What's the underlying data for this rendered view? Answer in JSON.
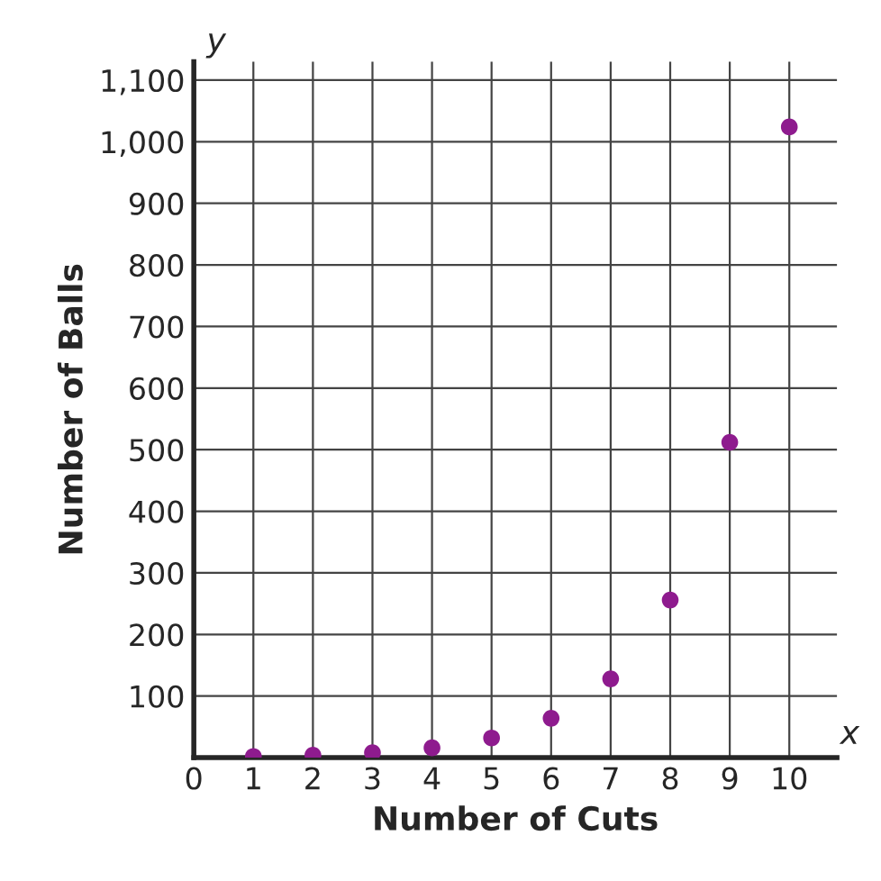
{
  "chart_data": {
    "type": "scatter",
    "xlabel": "Number of Cuts",
    "ylabel": "Number of Balls",
    "x": [
      1,
      2,
      3,
      4,
      5,
      6,
      7,
      8,
      9,
      10
    ],
    "series": [
      {
        "color": "#8e1b8e",
        "values": [
          2,
          4,
          8,
          16,
          32,
          64,
          128,
          256,
          512,
          1024
        ]
      }
    ],
    "xlim": [
      0,
      10.8
    ],
    "ylim": [
      0,
      1130
    ],
    "xticks": [
      0,
      1,
      2,
      3,
      4,
      5,
      6,
      7,
      8,
      9,
      10
    ],
    "yticks": [
      {
        "value": 0,
        "label": null
      },
      100,
      200,
      300,
      400,
      500,
      600,
      700,
      800,
      900,
      {
        "value": 1000,
        "label": "1,000"
      },
      {
        "value": 1100,
        "label": "1,100"
      }
    ],
    "annotations": [
      "x",
      "y"
    ],
    "grid": true,
    "marker": "circle",
    "legend": false
  }
}
